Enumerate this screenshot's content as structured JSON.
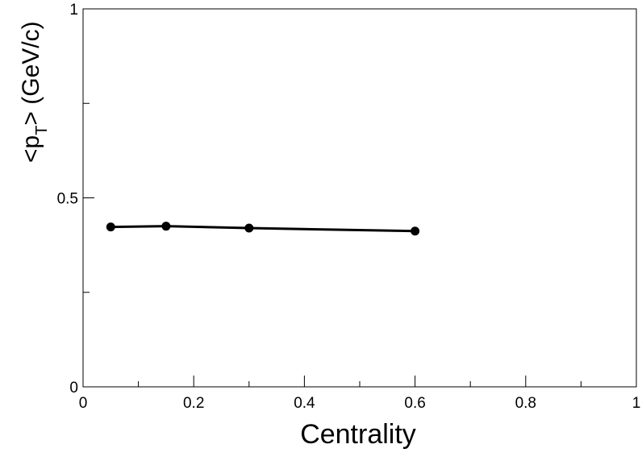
{
  "chart_data": {
    "type": "line",
    "title": "",
    "xlabel": "Centrality",
    "ylabel": {
      "prefix": "<p",
      "subscript": "T",
      "suffix": "> (GeV/c)"
    },
    "xlim": [
      0,
      1
    ],
    "ylim": [
      0,
      1
    ],
    "x_ticks": [
      {
        "value": 0,
        "label": "0"
      },
      {
        "value": 0.2,
        "label": "0.2"
      },
      {
        "value": 0.4,
        "label": "0.4"
      },
      {
        "value": 0.6,
        "label": "0.6"
      },
      {
        "value": 0.8,
        "label": "0.8"
      },
      {
        "value": 1,
        "label": "1"
      }
    ],
    "x_minor_ticks": [
      0.1,
      0.3,
      0.5,
      0.7,
      0.9
    ],
    "y_ticks": [
      {
        "value": 0,
        "label": "0"
      },
      {
        "value": 0.5,
        "label": "0.5"
      },
      {
        "value": 1,
        "label": "1"
      }
    ],
    "y_minor_ticks": [
      0.25,
      0.75
    ],
    "grid": false,
    "legend": "none",
    "series": [
      {
        "color": "#000000",
        "marker": "circle",
        "x": [
          0.05,
          0.15,
          0.3,
          0.6
        ],
        "y": [
          0.423,
          0.425,
          0.42,
          0.412
        ]
      }
    ]
  }
}
